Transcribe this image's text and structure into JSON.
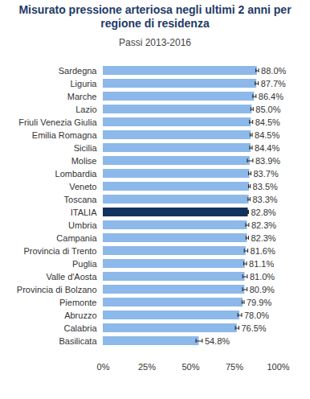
{
  "chart_data": {
    "type": "bar",
    "orientation": "horizontal",
    "title": "Misurato pressione arteriosa negli ultimi 2 anni per regione di residenza",
    "subtitle": "Passi 2013-2016",
    "categories": [
      "Sardegna",
      "Liguria",
      "Marche",
      "Lazio",
      "Friuli Venezia Giulia",
      "Emilia Romagna",
      "Sicilia",
      "Molise",
      "Lombardia",
      "Veneto",
      "Toscana",
      "ITALIA",
      "Umbria",
      "Campania",
      "Provincia di Trento",
      "Puglia",
      "Valle d'Aosta",
      "Provincia di Bolzano",
      "Piemonte",
      "Abruzzo",
      "Calabria",
      "Basilicata"
    ],
    "values": [
      88.0,
      87.7,
      86.4,
      85.0,
      84.5,
      84.5,
      84.4,
      83.9,
      83.7,
      83.5,
      83.3,
      82.8,
      82.3,
      82.3,
      81.6,
      81.1,
      81.0,
      80.9,
      79.9,
      78.0,
      76.5,
      54.8
    ],
    "value_labels": [
      "88.0%",
      "87.7%",
      "86.4%",
      "85.0%",
      "84.5%",
      "84.5%",
      "84.4%",
      "83.9%",
      "83.7%",
      "83.5%",
      "83.3%",
      "82.8%",
      "82.3%",
      "82.3%",
      "81.6%",
      "81.1%",
      "81.0%",
      "80.9%",
      "79.9%",
      "78.0%",
      "76.5%",
      "54.8%"
    ],
    "errors": [
      0.8,
      0.9,
      0.9,
      0.7,
      0.9,
      0.6,
      0.7,
      1.6,
      0.7,
      0.5,
      0.6,
      0.2,
      0.9,
      0.7,
      1.0,
      0.8,
      1.3,
      1.3,
      0.6,
      1.1,
      1.0,
      1.8
    ],
    "colors": [
      "#8db8ea",
      "#8db8ea",
      "#8db8ea",
      "#8db8ea",
      "#8db8ea",
      "#8db8ea",
      "#8db8ea",
      "#8db8ea",
      "#8db8ea",
      "#8db8ea",
      "#8db8ea",
      "#12335f",
      "#8db8ea",
      "#8db8ea",
      "#8db8ea",
      "#8db8ea",
      "#8db8ea",
      "#8db8ea",
      "#8db8ea",
      "#8db8ea",
      "#8db8ea",
      "#8db8ea"
    ],
    "xlim": [
      0,
      100
    ],
    "xticks": [
      {
        "value": 0,
        "label": "0%"
      },
      {
        "value": 25,
        "label": "25%"
      },
      {
        "value": 50,
        "label": "50%"
      },
      {
        "value": 75,
        "label": "75%"
      },
      {
        "value": 100,
        "label": "100%"
      }
    ],
    "data_labels": true,
    "grid": false
  }
}
